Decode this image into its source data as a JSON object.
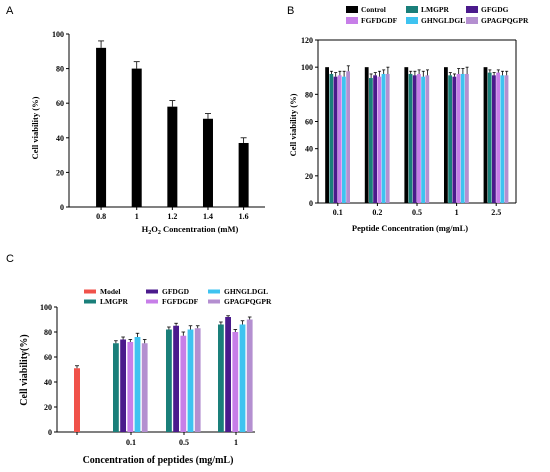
{
  "panels": {
    "a": "A",
    "b": "B",
    "c": "C"
  },
  "chart_data": [
    {
      "type": "bar",
      "panel": "A",
      "categories": [
        "0.8",
        "1",
        "1.2",
        "1.4",
        "1.6"
      ],
      "values": [
        92,
        80,
        58,
        51,
        37
      ],
      "errors": [
        4,
        4,
        3.5,
        3,
        3
      ],
      "xlabel_main": "H",
      "xlabel_sub": "2",
      "xlabel_mid": "O",
      "xlabel_sub2": "2",
      "xlabel_tail": " Concentration (mM)",
      "ylabel": "Cell viability (%)",
      "ylim": [
        0,
        100
      ],
      "yticks": [
        "0",
        "20",
        "40",
        "60",
        "80",
        "100"
      ],
      "color": "#000000"
    },
    {
      "type": "bar",
      "panel": "B",
      "categories": [
        "0.1",
        "0.2",
        "0.5",
        "1",
        "2.5"
      ],
      "series": [
        {
          "name": "Control",
          "color": "#000000",
          "values": [
            100,
            100,
            100,
            100,
            100
          ],
          "errors": [
            0,
            0,
            0,
            0,
            0
          ]
        },
        {
          "name": "LMGPR",
          "color": "#1a7f7a",
          "values": [
            95,
            92,
            95,
            94,
            96
          ],
          "errors": [
            2,
            3,
            2,
            2,
            2
          ]
        },
        {
          "name": "GFGDG",
          "color": "#4b1a8c",
          "values": [
            93,
            94,
            94,
            93,
            94
          ],
          "errors": [
            3,
            2,
            3,
            2,
            2
          ]
        },
        {
          "name": "FGFDGDF",
          "color": "#c77ee8",
          "values": [
            94,
            93,
            95,
            95,
            96
          ],
          "errors": [
            3,
            4,
            3,
            4,
            2
          ]
        },
        {
          "name": "GHNGLDGL",
          "color": "#3ec3f0",
          "values": [
            93,
            95,
            93,
            95,
            94
          ],
          "errors": [
            4,
            3,
            4,
            4,
            3
          ]
        },
        {
          "name": "GPAGPQGPR",
          "color": "#b48fd0",
          "values": [
            97,
            95,
            94,
            95,
            94
          ],
          "errors": [
            4,
            5,
            4,
            5,
            3
          ]
        }
      ],
      "xlabel": "Peptide Concentration (mg/mL)",
      "ylabel": "Cell viability (%)",
      "ylim": [
        0,
        120
      ],
      "yticks": [
        "0",
        "20",
        "40",
        "60",
        "80",
        "100",
        "120"
      ]
    },
    {
      "type": "bar",
      "panel": "C",
      "groups": [
        "",
        "0.1",
        "0.5",
        "1"
      ],
      "model": {
        "name": "Model",
        "color": "#f0524a",
        "value": 51,
        "error": 2
      },
      "series": [
        {
          "name": "LMGPR",
          "color": "#1a7f7a",
          "values": [
            71,
            82,
            86
          ],
          "errors": [
            2,
            2,
            2
          ]
        },
        {
          "name": "GFDGD",
          "color": "#4b1a8c",
          "values": [
            74,
            85,
            92
          ],
          "errors": [
            2,
            2,
            1
          ]
        },
        {
          "name": "FGFDGDF",
          "color": "#c77ee8",
          "values": [
            72,
            77,
            80
          ],
          "errors": [
            2,
            3,
            2
          ]
        },
        {
          "name": "GHNGLDGL",
          "color": "#3ec3f0",
          "values": [
            76,
            82,
            86
          ],
          "errors": [
            3,
            3,
            3
          ]
        },
        {
          "name": "GPAGPQGPR",
          "color": "#b48fd0",
          "values": [
            71,
            83,
            90
          ],
          "errors": [
            3,
            2,
            2
          ]
        }
      ],
      "xlabel": "Concentration of peptides (mg/mL)",
      "ylabel": "Cell viability(%)",
      "ylim": [
        0,
        100
      ],
      "yticks": [
        "0",
        "20",
        "40",
        "60",
        "80",
        "100"
      ]
    }
  ]
}
